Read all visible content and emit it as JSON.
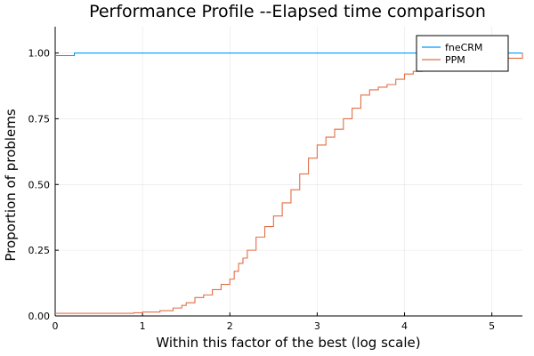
{
  "chart_data": {
    "type": "line",
    "title": "Performance Profile --Elapsed time comparison",
    "xlabel": "Within this factor of the best (log scale)",
    "ylabel": "Proportion of problems",
    "xlim": [
      0,
      5.35
    ],
    "ylim": [
      0,
      1.1
    ],
    "xticks": [
      0,
      1,
      2,
      3,
      4,
      5
    ],
    "xtick_labels": [
      "0",
      "1",
      "2",
      "3",
      "4",
      "5"
    ],
    "yticks": [
      0,
      0.25,
      0.5,
      0.75,
      1.0
    ],
    "ytick_labels": [
      "0.00",
      "0.25",
      "0.50",
      "0.75",
      "1.00"
    ],
    "grid": true,
    "legend_position": "top-right",
    "series": [
      {
        "name": "fneCRM",
        "color": "#009af9",
        "step": true,
        "x": [
          0,
          0.22,
          0.22,
          5.35
        ],
        "y": [
          0.99,
          0.99,
          1.0,
          1.0
        ]
      },
      {
        "name": "PPM",
        "color": "#e26f46",
        "step": true,
        "x": [
          0,
          0.6,
          0.9,
          1.0,
          1.2,
          1.35,
          1.45,
          1.5,
          1.6,
          1.7,
          1.8,
          1.9,
          2.0,
          2.05,
          2.1,
          2.15,
          2.2,
          2.3,
          2.4,
          2.5,
          2.6,
          2.7,
          2.8,
          2.9,
          3.0,
          3.1,
          3.2,
          3.3,
          3.4,
          3.5,
          3.6,
          3.7,
          3.8,
          3.9,
          4.0,
          4.1,
          4.2,
          4.3,
          4.4,
          4.5,
          5.35
        ],
        "y": [
          0.01,
          0.01,
          0.012,
          0.015,
          0.02,
          0.03,
          0.04,
          0.05,
          0.07,
          0.08,
          0.1,
          0.12,
          0.14,
          0.17,
          0.2,
          0.22,
          0.25,
          0.3,
          0.34,
          0.38,
          0.43,
          0.48,
          0.54,
          0.6,
          0.65,
          0.68,
          0.71,
          0.75,
          0.79,
          0.84,
          0.86,
          0.87,
          0.88,
          0.9,
          0.92,
          0.93,
          0.95,
          0.96,
          0.97,
          0.98,
          1.0
        ]
      }
    ]
  }
}
